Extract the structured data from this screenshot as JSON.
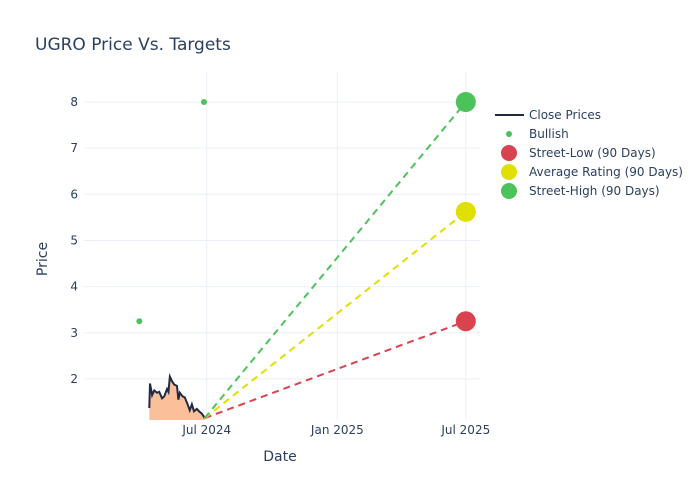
{
  "chart_data": {
    "type": "line",
    "title": "UGRO Price Vs. Targets",
    "xlabel": "Date",
    "ylabel": "Price",
    "xlim": [
      "2024-01-10",
      "2025-07-21"
    ],
    "ylim": [
      1.11,
      8.0
    ],
    "grid": true,
    "legend_position": "right",
    "x_ticks": [
      {
        "date": "2024-07-01",
        "label": "Jul 2024"
      },
      {
        "date": "2025-01-01",
        "label": "Jan 2025"
      },
      {
        "date": "2025-07-01",
        "label": "Jul 2025"
      }
    ],
    "y_ticks": [
      2,
      3,
      4,
      5,
      6,
      7,
      8
    ],
    "series": [
      {
        "name": "Close Prices",
        "type": "area-line",
        "color": "#1f2a44",
        "fill": "#fbbf9a",
        "points": [
          [
            "2024-04-11",
            1.37
          ],
          [
            "2024-04-12",
            1.9
          ],
          [
            "2024-04-15",
            1.65
          ],
          [
            "2024-04-18",
            1.75
          ],
          [
            "2024-04-22",
            1.7
          ],
          [
            "2024-04-25",
            1.72
          ],
          [
            "2024-04-29",
            1.58
          ],
          [
            "2024-05-02",
            1.62
          ],
          [
            "2024-05-06",
            1.78
          ],
          [
            "2024-05-08",
            1.72
          ],
          [
            "2024-05-10",
            2.05
          ],
          [
            "2024-05-13",
            1.95
          ],
          [
            "2024-05-16",
            1.88
          ],
          [
            "2024-05-20",
            1.85
          ],
          [
            "2024-05-22",
            1.55
          ],
          [
            "2024-05-24",
            1.7
          ],
          [
            "2024-05-28",
            1.62
          ],
          [
            "2024-05-31",
            1.6
          ],
          [
            "2024-06-04",
            1.45
          ],
          [
            "2024-06-07",
            1.32
          ],
          [
            "2024-06-10",
            1.45
          ],
          [
            "2024-06-13",
            1.3
          ],
          [
            "2024-06-17",
            1.35
          ],
          [
            "2024-06-20",
            1.3
          ],
          [
            "2024-06-24",
            1.25
          ],
          [
            "2024-06-27",
            1.18
          ],
          [
            "2024-06-28",
            1.15
          ]
        ]
      },
      {
        "name": "Bullish",
        "type": "scatter",
        "color": "#4cc35a",
        "points": [
          [
            "2024-03-28",
            3.25
          ],
          [
            "2024-06-27",
            8.0
          ]
        ]
      },
      {
        "name": "Street-Low (90 Days)",
        "type": "target",
        "color": "#d9434f",
        "points": [
          [
            "2024-06-28",
            1.15
          ],
          [
            "2025-07-01",
            3.25
          ]
        ]
      },
      {
        "name": "Average Rating (90 Days)",
        "type": "target",
        "color": "#dfdf00",
        "points": [
          [
            "2024-06-28",
            1.15
          ],
          [
            "2025-07-01",
            5.62
          ]
        ]
      },
      {
        "name": "Street-High (90 Days)",
        "type": "target",
        "color": "#4cc35a",
        "points": [
          [
            "2024-06-28",
            1.15
          ],
          [
            "2025-07-01",
            8.0
          ]
        ]
      }
    ]
  }
}
